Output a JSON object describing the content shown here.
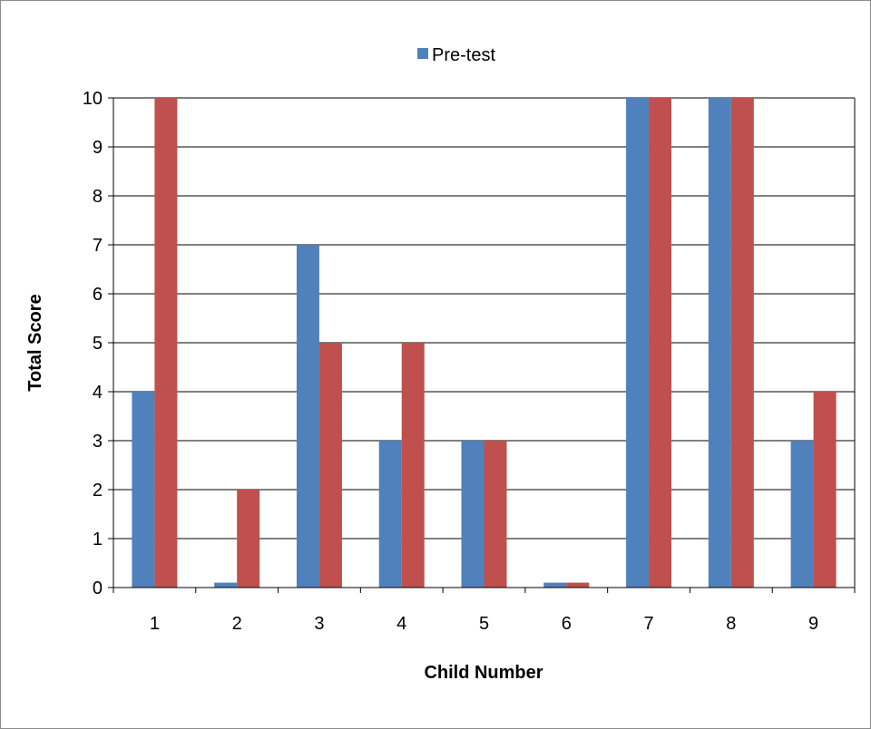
{
  "chart_data": {
    "type": "bar",
    "title": "",
    "xlabel": "Child Number",
    "ylabel": "Total Score",
    "ylim": [
      0,
      10
    ],
    "yticks": [
      0,
      1,
      2,
      3,
      4,
      5,
      6,
      7,
      8,
      9,
      10
    ],
    "categories": [
      "1",
      "2",
      "3",
      "4",
      "5",
      "6",
      "7",
      "8",
      "9"
    ],
    "series": [
      {
        "name": "Pre-test",
        "color": "#4f81bd",
        "values": [
          4,
          0.1,
          7,
          3,
          3,
          0.1,
          10,
          10,
          3
        ]
      },
      {
        "color": "#c0504d",
        "values": [
          10,
          2,
          5,
          5,
          3,
          0.1,
          10,
          10,
          4
        ]
      }
    ],
    "grid": true,
    "legend": "top"
  }
}
